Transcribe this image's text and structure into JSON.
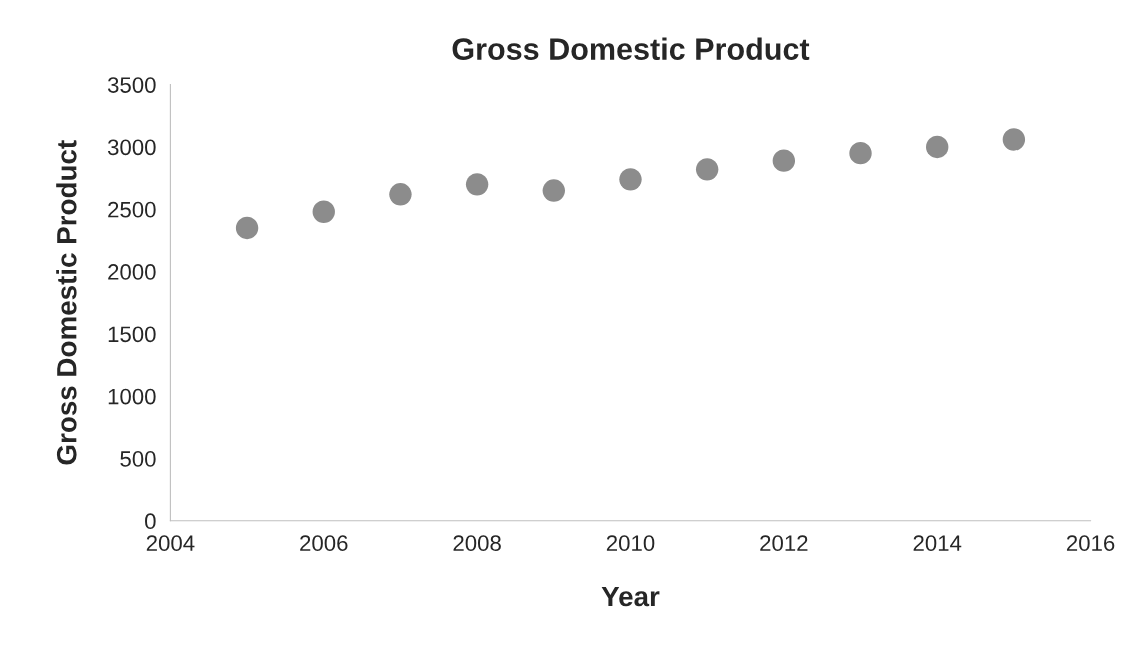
{
  "chart_data": {
    "type": "scatter",
    "title": "Gross Domestic Product",
    "xlabel": "Year",
    "ylabel": "Gross Domestic Product",
    "x": [
      2005,
      2006,
      2007,
      2008,
      2009,
      2010,
      2011,
      2012,
      2013,
      2014,
      2015
    ],
    "series": [
      {
        "color": "#8c8c8c",
        "values": [
          2350,
          2480,
          2620,
          2700,
          2650,
          2740,
          2820,
          2890,
          2950,
          3000,
          3060
        ]
      }
    ],
    "xlim": [
      2004,
      2016
    ],
    "xticks": [
      2004,
      2006,
      2008,
      2010,
      2012,
      2014,
      2016
    ],
    "ylim": [
      0,
      3500
    ],
    "yticks": [
      0,
      500,
      1000,
      1500,
      2000,
      2500,
      3000,
      3500
    ],
    "grid": false,
    "marker": "circle"
  }
}
